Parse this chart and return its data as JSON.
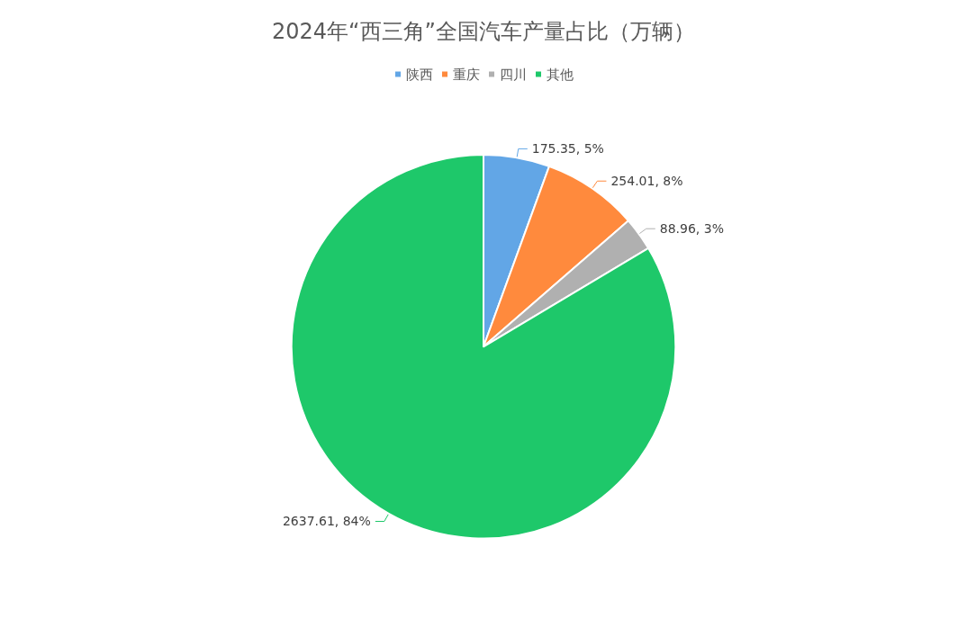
{
  "chart_data": {
    "type": "pie",
    "title": "2024年“西三角”全国汽车产量占比（万辆）",
    "categories": [
      "陕西",
      "重庆",
      "四川",
      "其他"
    ],
    "values": [
      175.35,
      254.01,
      88.96,
      2637.61
    ],
    "colors": [
      "#62a6e6",
      "#ff8a3d",
      "#b0b0b0",
      "#1ec86a"
    ],
    "value_labels": [
      "175.35, 5%",
      "254.01, 8%",
      "88.96, 3%",
      "2637.61, 84%"
    ],
    "legend": "top"
  }
}
